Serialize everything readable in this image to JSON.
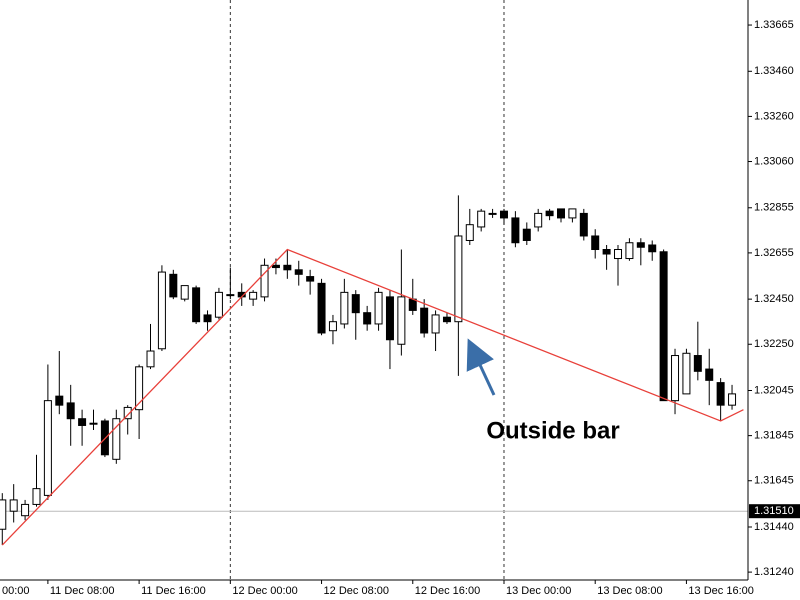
{
  "chart_data": {
    "type": "candlestick",
    "x": [
      4,
      5,
      6,
      7,
      8,
      9,
      10,
      11,
      12,
      13,
      14,
      15,
      16,
      17,
      18,
      19,
      20,
      21,
      22,
      23,
      24,
      25,
      26,
      27,
      28,
      29,
      30,
      31,
      32,
      33,
      34,
      35,
      36,
      37,
      38,
      39,
      40,
      41,
      42,
      43,
      44,
      45,
      46,
      47,
      48,
      49,
      50,
      51,
      52,
      53,
      54,
      55,
      56,
      57,
      58,
      59,
      60,
      61,
      62,
      63,
      64,
      65,
      66,
      67,
      68
    ],
    "open": [
      1.3143,
      1.3151,
      1.3149,
      1.3154,
      1.3158,
      1.3202,
      1.3199,
      1.3192,
      1.319,
      1.3191,
      1.3174,
      1.3192,
      1.3196,
      1.3215,
      1.3223,
      1.3256,
      1.3245,
      1.325,
      1.3238,
      1.3237,
      1.3247,
      1.3248,
      1.3245,
      1.3246,
      1.326,
      1.326,
      1.3258,
      1.3255,
      1.3252,
      1.3231,
      1.3234,
      1.3247,
      1.3239,
      1.3234,
      1.3246,
      1.3225,
      1.3245,
      1.3241,
      1.323,
      1.3237,
      1.3235,
      1.3271,
      1.3277,
      1.3283,
      1.3284,
      1.3281,
      1.3276,
      1.3277,
      1.3284,
      1.3285,
      1.3281,
      1.3283,
      1.3273,
      1.3267,
      1.3263,
      1.3263,
      1.327,
      1.3269,
      1.3266,
      1.32,
      1.3203,
      1.322,
      1.3214,
      1.3208,
      1.3198
    ],
    "high": [
      1.3159,
      1.3163,
      1.3156,
      1.3176,
      1.3216,
      1.3222,
      1.3207,
      1.3196,
      1.3196,
      1.3192,
      1.3196,
      1.3198,
      1.3216,
      1.3234,
      1.326,
      1.3258,
      1.3251,
      1.3251,
      1.324,
      1.325,
      1.3259,
      1.3252,
      1.3249,
      1.3263,
      1.3263,
      1.3267,
      1.3262,
      1.3258,
      1.3254,
      1.3238,
      1.3254,
      1.3249,
      1.3242,
      1.325,
      1.3249,
      1.3267,
      1.3254,
      1.3245,
      1.324,
      1.3239,
      1.3291,
      1.3285,
      1.3285,
      1.3285,
      1.3285,
      1.3284,
      1.3279,
      1.3285,
      1.3285,
      1.3285,
      1.3285,
      1.3285,
      1.3276,
      1.3269,
      1.3269,
      1.3272,
      1.3272,
      1.3271,
      1.3267,
      1.3223,
      1.3223,
      1.3235,
      1.3223,
      1.321,
      1.3207
    ],
    "low": [
      1.3136,
      1.3146,
      1.3147,
      1.3153,
      1.3156,
      1.3194,
      1.318,
      1.318,
      1.3187,
      1.3175,
      1.3172,
      1.3185,
      1.3183,
      1.3214,
      1.3222,
      1.3245,
      1.3244,
      1.3234,
      1.3231,
      1.3236,
      1.3245,
      1.3242,
      1.3242,
      1.3244,
      1.3256,
      1.3254,
      1.3251,
      1.3247,
      1.3229,
      1.3225,
      1.3232,
      1.3227,
      1.3231,
      1.3231,
      1.3214,
      1.322,
      1.3238,
      1.3228,
      1.3222,
      1.3234,
      1.3211,
      1.3269,
      1.3275,
      1.3281,
      1.3278,
      1.3268,
      1.3269,
      1.3275,
      1.328,
      1.3279,
      1.3279,
      1.3271,
      1.3263,
      1.3258,
      1.3251,
      1.3262,
      1.326,
      1.3262,
      1.32,
      1.3194,
      1.3203,
      1.3209,
      1.3198,
      1.3191,
      1.3196
    ],
    "close": [
      1.3156,
      1.3156,
      1.3154,
      1.3161,
      1.32,
      1.3198,
      1.3192,
      1.3189,
      1.319,
      1.3176,
      1.3192,
      1.3197,
      1.3215,
      1.3222,
      1.3257,
      1.3246,
      1.3251,
      1.3235,
      1.3235,
      1.3248,
      1.3247,
      1.3246,
      1.3248,
      1.326,
      1.3259,
      1.3258,
      1.3256,
      1.3253,
      1.323,
      1.3235,
      1.3248,
      1.3239,
      1.3234,
      1.3248,
      1.3227,
      1.3246,
      1.324,
      1.323,
      1.3238,
      1.3235,
      1.3273,
      1.3278,
      1.3284,
      1.3283,
      1.3281,
      1.327,
      1.3271,
      1.3283,
      1.3282,
      1.3281,
      1.3285,
      1.3273,
      1.3267,
      1.3265,
      1.3267,
      1.327,
      1.3268,
      1.3266,
      1.32,
      1.322,
      1.3221,
      1.3213,
      1.3209,
      1.3198,
      1.3203
    ],
    "up_color": "#ffffff",
    "down_color": "#000000",
    "xlim": [
      3.8,
      69.4
    ],
    "ylim": [
      1.31205,
      1.33776
    ],
    "xticks": [
      {
        "value": 0,
        "label": "00:00"
      },
      {
        "value": 8,
        "label": "11 Dec 08:00"
      },
      {
        "value": 16,
        "label": "11 Dec 16:00"
      },
      {
        "value": 24,
        "label": "12 Dec 00:00"
      },
      {
        "value": 32,
        "label": "12 Dec 08:00"
      },
      {
        "value": 40,
        "label": "12 Dec 16:00"
      },
      {
        "value": 48,
        "label": "13 Dec 00:00"
      },
      {
        "value": 56,
        "label": "13 Dec 08:00"
      },
      {
        "value": 64,
        "label": "13 Dec 16:00"
      }
    ],
    "yticks": [
      1.33665,
      {
        "value": 1.3346,
        "label": "1.33460"
      },
      {
        "value": 1.3326,
        "label": "1.33260"
      },
      {
        "value": 1.3306,
        "label": "1.33060"
      },
      1.32855,
      1.32655,
      {
        "value": 1.3245,
        "label": "1.32450"
      },
      {
        "value": 1.3225,
        "label": "1.32250"
      },
      1.32045,
      1.31845,
      1.31645,
      {
        "value": 1.3144,
        "label": "1.31440"
      },
      {
        "value": 1.3124,
        "label": "1.31240"
      }
    ],
    "separators": [
      24,
      48
    ],
    "current_price": {
      "value": 1.3151,
      "label": "1.31510"
    },
    "trendline": {
      "color": "#e8403a",
      "x": [
        4,
        29,
        67,
        69
      ],
      "y": [
        1.3136,
        1.3267,
        1.3191,
        1.3196
      ]
    },
    "annotation": {
      "text": "Outside bar",
      "color": "#3a6ea8"
    }
  }
}
